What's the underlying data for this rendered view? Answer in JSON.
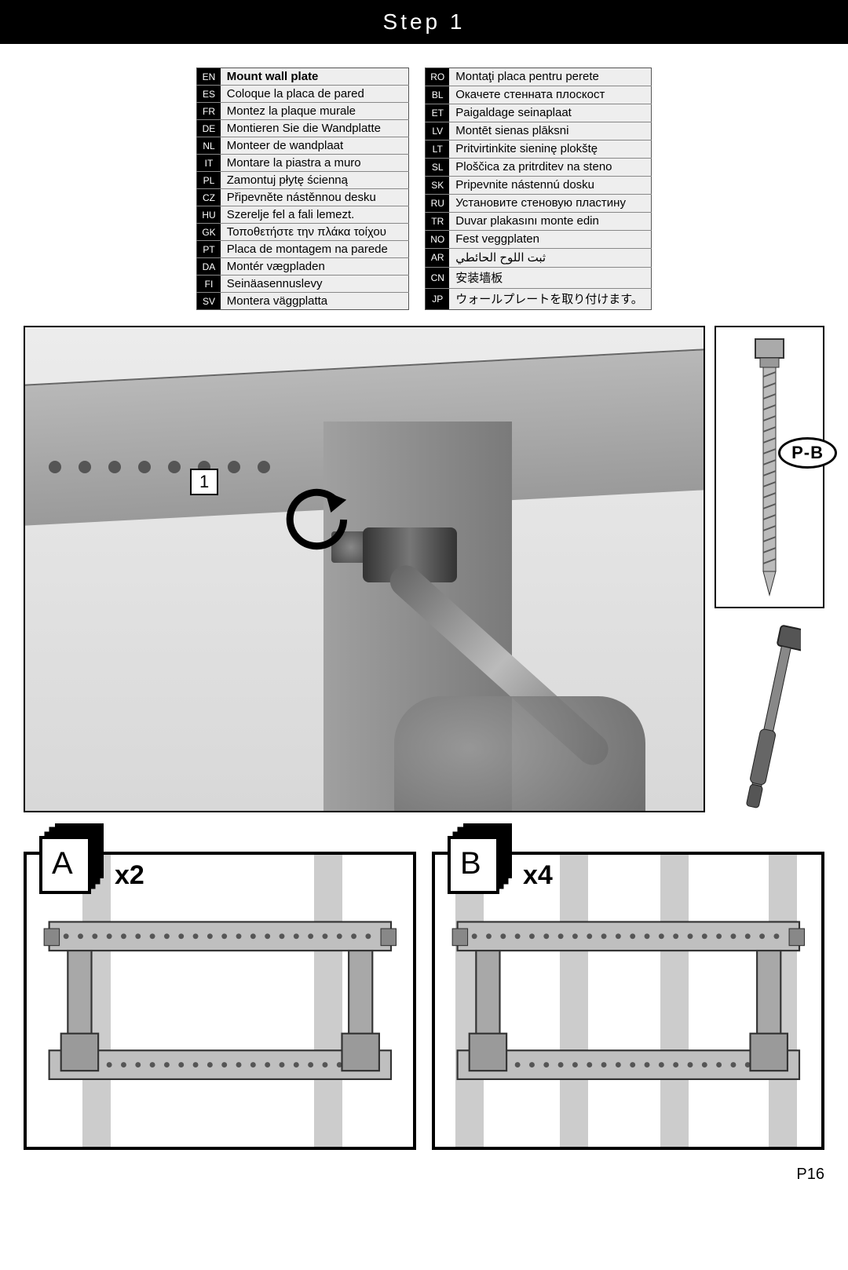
{
  "step_title": "Step 1",
  "page_number": "P16",
  "languages_left": [
    {
      "code": "EN",
      "text": "Mount wall plate",
      "bold": true
    },
    {
      "code": "ES",
      "text": "Coloque la placa de pared"
    },
    {
      "code": "FR",
      "text": "Montez la plaque murale"
    },
    {
      "code": "DE",
      "text": "Montieren Sie die Wandplatte"
    },
    {
      "code": "NL",
      "text": "Monteer de wandplaat"
    },
    {
      "code": "IT",
      "text": "Montare la piastra a muro"
    },
    {
      "code": "PL",
      "text": "Zamontuj płytę ścienną"
    },
    {
      "code": "CZ",
      "text": "Připevněte nástěnnou desku"
    },
    {
      "code": "HU",
      "text": "Szerelje fel a fali lemezt."
    },
    {
      "code": "GK",
      "text": "Τοποθετήστε την πλάκα τοίχου"
    },
    {
      "code": "PT",
      "text": "Placa de montagem na parede"
    },
    {
      "code": "DA",
      "text": "Montér vægpladen"
    },
    {
      "code": "FI",
      "text": "Seinäasennuslevy"
    },
    {
      "code": "SV",
      "text": "Montera väggplatta"
    }
  ],
  "languages_right": [
    {
      "code": "RO",
      "text": "Montaţi placa pentru perete"
    },
    {
      "code": "BL",
      "text": "Окачете стенната плоскост"
    },
    {
      "code": "ET",
      "text": "Paigaldage seinaplaat"
    },
    {
      "code": "LV",
      "text": "Montēt sienas plāksni"
    },
    {
      "code": "LT",
      "text": "Pritvirtinkite sieninę plokštę"
    },
    {
      "code": "SL",
      "text": "Ploščica za pritrditev na steno"
    },
    {
      "code": "SK",
      "text": "Pripevnite nástennú dosku"
    },
    {
      "code": "RU",
      "text": "Установите стеновую пластину"
    },
    {
      "code": "TR",
      "text": "Duvar plakasını monte edin"
    },
    {
      "code": "NO",
      "text": "Fest veggplaten"
    },
    {
      "code": "AR",
      "text": "ثبت اللوح الحائطي"
    },
    {
      "code": "CN",
      "text": "安装墙板"
    },
    {
      "code": "JP",
      "text": "ウォールプレートを取り付けます。"
    }
  ],
  "callout_number": "1",
  "hardware_label": "P-B",
  "options": [
    {
      "letter": "A",
      "qty": "x2",
      "stud_positions": [
        0.18,
        0.78
      ]
    },
    {
      "letter": "B",
      "qty": "x4",
      "stud_positions": [
        0.09,
        0.36,
        0.62,
        0.9
      ]
    }
  ],
  "colors": {
    "black": "#000000",
    "grey_bg": "#eeeeee",
    "stud": "#cccccc",
    "metal_light": "#bfbfbf",
    "metal_dark": "#7a7a7a"
  }
}
